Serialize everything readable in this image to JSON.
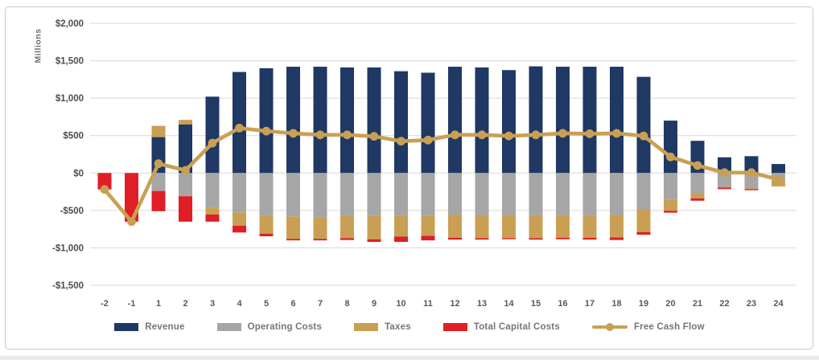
{
  "chart_data": {
    "type": "combo",
    "bar_mode": "stacked",
    "title": "",
    "xlabel": "",
    "ylabel": "Millions",
    "ylim": [
      -1500,
      2000
    ],
    "grid": true,
    "legend_position": "bottom",
    "y_ticks": [
      {
        "label": "$2,000",
        "value": 2000
      },
      {
        "label": "$1,500",
        "value": 1500
      },
      {
        "label": "$1,000",
        "value": 1000
      },
      {
        "label": "$500",
        "value": 500
      },
      {
        "label": "$0",
        "value": 0
      },
      {
        "label": "-$500",
        "value": -500
      },
      {
        "label": "-$1,000",
        "value": -1000
      },
      {
        "label": "-$1,500",
        "value": -1500
      }
    ],
    "categories": [
      "-2",
      "-1",
      "1",
      "2",
      "3",
      "4",
      "5",
      "6",
      "7",
      "8",
      "9",
      "10",
      "11",
      "12",
      "13",
      "14",
      "15",
      "16",
      "17",
      "18",
      "19",
      "20",
      "21",
      "22",
      "23",
      "24"
    ],
    "series": [
      {
        "name": "Revenue",
        "type": "bar",
        "color": "#1F3864",
        "values": [
          0,
          0,
          480,
          650,
          1020,
          1350,
          1400,
          1420,
          1420,
          1410,
          1410,
          1360,
          1340,
          1420,
          1410,
          1375,
          1425,
          1420,
          1420,
          1420,
          1285,
          700,
          430,
          210,
          225,
          120
        ]
      },
      {
        "name": "Operating Costs",
        "type": "bar",
        "color": "#A6A6A6",
        "values": [
          0,
          0,
          -240,
          -310,
          -460,
          -525,
          -570,
          -580,
          -590,
          -570,
          -575,
          -570,
          -575,
          -560,
          -560,
          -560,
          -565,
          -565,
          -570,
          -560,
          -485,
          -360,
          -265,
          -185,
          -205,
          -100
        ]
      },
      {
        "name": "Taxes",
        "type": "bar",
        "color": "#C9A053",
        "values": [
          0,
          0,
          150,
          60,
          -95,
          -180,
          -240,
          -300,
          -290,
          -300,
          -310,
          -280,
          -265,
          -305,
          -310,
          -310,
          -305,
          -300,
          -295,
          -300,
          -305,
          -145,
          -75,
          -10,
          -10,
          -80
        ]
      },
      {
        "name": "Total Capital Costs",
        "type": "bar",
        "color": "#E01E25",
        "values": [
          -220,
          -650,
          -270,
          -340,
          -95,
          -90,
          -35,
          -20,
          -20,
          -25,
          -35,
          -70,
          -60,
          -25,
          -20,
          -15,
          -20,
          -20,
          -25,
          -35,
          -35,
          -25,
          -30,
          -20,
          -15,
          0
        ]
      },
      {
        "name": "Free Cash Flow",
        "type": "line",
        "color": "#C9A053",
        "values": [
          -220,
          -650,
          125,
          35,
          400,
          600,
          560,
          530,
          510,
          510,
          490,
          425,
          440,
          510,
          510,
          495,
          510,
          530,
          525,
          530,
          495,
          215,
          100,
          5,
          5,
          -85
        ]
      }
    ]
  }
}
